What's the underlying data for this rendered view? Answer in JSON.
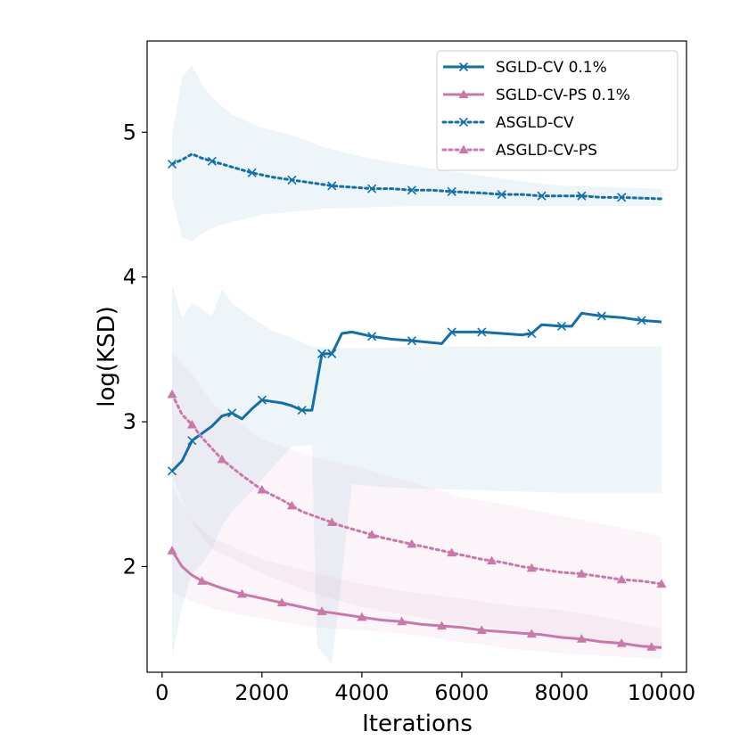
{
  "chart_data": {
    "type": "line",
    "title": "",
    "xlabel": "Iterations",
    "ylabel": "log(KSD)",
    "xlim": [
      -300,
      10500
    ],
    "ylim": [
      1.27,
      5.63
    ],
    "xticks": [
      0,
      2000,
      4000,
      6000,
      8000,
      10000
    ],
    "yticks": [
      2,
      3,
      4,
      5
    ],
    "grid": false,
    "legend_position": "top-right",
    "colors": {
      "sgld_cv": "#1170aa",
      "sgld_cv_ps": "#c978a9"
    },
    "series": [
      {
        "name": "SGLD-CV 0.1%",
        "color": "#1170aa",
        "style": "solid",
        "marker": "x",
        "points": [
          [
            200,
            2.66
          ],
          [
            400,
            2.73
          ],
          [
            600,
            2.87
          ],
          [
            800,
            2.92
          ],
          [
            1000,
            2.97
          ],
          [
            1200,
            3.04
          ],
          [
            1400,
            3.06
          ],
          [
            1600,
            3.02
          ],
          [
            1800,
            3.09
          ],
          [
            2000,
            3.15
          ],
          [
            2200,
            3.14
          ],
          [
            2400,
            3.13
          ],
          [
            2600,
            3.11
          ],
          [
            2800,
            3.08
          ],
          [
            3000,
            3.08
          ],
          [
            3200,
            3.47
          ],
          [
            3400,
            3.47
          ],
          [
            3600,
            3.61
          ],
          [
            3800,
            3.62
          ],
          [
            4200,
            3.59
          ],
          [
            4600,
            3.57
          ],
          [
            5000,
            3.56
          ],
          [
            5600,
            3.54
          ],
          [
            5800,
            3.62
          ],
          [
            6400,
            3.62
          ],
          [
            6800,
            3.61
          ],
          [
            7200,
            3.6
          ],
          [
            7400,
            3.61
          ],
          [
            7600,
            3.67
          ],
          [
            8000,
            3.66
          ],
          [
            8200,
            3.66
          ],
          [
            8400,
            3.75
          ],
          [
            8800,
            3.73
          ],
          [
            9200,
            3.72
          ],
          [
            9600,
            3.7
          ],
          [
            10000,
            3.69
          ]
        ],
        "marker_x": [
          200,
          600,
          1400,
          2000,
          2800,
          3200,
          3400,
          4200,
          5000,
          5800,
          6400,
          7400,
          8000,
          8800,
          9600
        ],
        "band": {
          "x": [
            200,
            400,
            600,
            800,
            1000,
            1200,
            1400,
            1800,
            2200,
            2600,
            3000,
            3100,
            3400,
            3800,
            4400,
            5000,
            6000,
            7000,
            8000,
            9000,
            10000
          ],
          "lower": [
            1.37,
            1.72,
            1.95,
            2.02,
            2.12,
            2.28,
            2.38,
            2.52,
            2.68,
            2.83,
            2.84,
            1.45,
            1.32,
            2.57,
            2.55,
            2.54,
            2.53,
            2.52,
            2.51,
            2.51,
            2.51
          ],
          "upper": [
            3.95,
            3.72,
            3.82,
            3.78,
            3.73,
            3.92,
            3.82,
            3.72,
            3.63,
            3.58,
            3.52,
            3.52,
            3.51,
            3.51,
            3.51,
            3.52,
            3.52,
            3.52,
            3.52,
            3.52,
            3.52
          ]
        }
      },
      {
        "name": "SGLD-CV-PS 0.1%",
        "color": "#c978a9",
        "style": "solid",
        "marker": "triangle",
        "points": [
          [
            200,
            2.11
          ],
          [
            400,
            2.0
          ],
          [
            600,
            1.94
          ],
          [
            800,
            1.9
          ],
          [
            1200,
            1.85
          ],
          [
            1600,
            1.81
          ],
          [
            2000,
            1.78
          ],
          [
            2400,
            1.75
          ],
          [
            2800,
            1.72
          ],
          [
            3200,
            1.69
          ],
          [
            3600,
            1.67
          ],
          [
            4000,
            1.65
          ],
          [
            4400,
            1.63
          ],
          [
            4800,
            1.62
          ],
          [
            5200,
            1.6
          ],
          [
            5600,
            1.59
          ],
          [
            6000,
            1.58
          ],
          [
            6400,
            1.56
          ],
          [
            6800,
            1.55
          ],
          [
            7200,
            1.54
          ],
          [
            7600,
            1.53
          ],
          [
            8000,
            1.51
          ],
          [
            8400,
            1.5
          ],
          [
            8800,
            1.48
          ],
          [
            9200,
            1.47
          ],
          [
            9600,
            1.45
          ],
          [
            10000,
            1.44
          ]
        ],
        "marker_x": [
          200,
          800,
          1600,
          2400,
          3200,
          4000,
          4800,
          5600,
          6400,
          7400,
          8400,
          9200,
          9800
        ],
        "band": {
          "x": [
            200,
            600,
            1000,
            1400,
            2000,
            3000,
            4000,
            5000,
            6000,
            7000,
            8000,
            9000,
            10000
          ],
          "lower": [
            1.82,
            1.76,
            1.71,
            1.68,
            1.64,
            1.58,
            1.56,
            1.53,
            1.48,
            1.43,
            1.4,
            1.38,
            1.36
          ],
          "upper": [
            2.55,
            2.32,
            2.2,
            2.14,
            2.05,
            1.96,
            1.88,
            1.82,
            1.78,
            1.73,
            1.7,
            1.64,
            1.57
          ]
        }
      },
      {
        "name": "ASGLD-CV",
        "color": "#1170aa",
        "style": "dotted",
        "marker": "x",
        "points": [
          [
            200,
            4.78
          ],
          [
            400,
            4.81
          ],
          [
            600,
            4.85
          ],
          [
            800,
            4.82
          ],
          [
            1000,
            4.8
          ],
          [
            1400,
            4.76
          ],
          [
            1800,
            4.72
          ],
          [
            2200,
            4.69
          ],
          [
            2600,
            4.67
          ],
          [
            3000,
            4.65
          ],
          [
            3400,
            4.63
          ],
          [
            3800,
            4.62
          ],
          [
            4200,
            4.61
          ],
          [
            4600,
            4.61
          ],
          [
            5000,
            4.6
          ],
          [
            5400,
            4.6
          ],
          [
            5800,
            4.59
          ],
          [
            6400,
            4.58
          ],
          [
            6800,
            4.57
          ],
          [
            7200,
            4.57
          ],
          [
            7600,
            4.56
          ],
          [
            8000,
            4.56
          ],
          [
            8400,
            4.56
          ],
          [
            8800,
            4.55
          ],
          [
            9200,
            4.55
          ],
          [
            10000,
            4.54
          ]
        ],
        "marker_x": [
          200,
          1000,
          1800,
          2600,
          3400,
          4200,
          5000,
          5800,
          6800,
          7600,
          8400,
          9200
        ],
        "band": {
          "x": [
            200,
            400,
            600,
            800,
            1000,
            1400,
            2000,
            2600,
            3200,
            4000,
            5000,
            6000,
            7000,
            8000,
            9000,
            10000
          ],
          "lower": [
            4.55,
            4.27,
            4.25,
            4.3,
            4.34,
            4.38,
            4.43,
            4.45,
            4.47,
            4.48,
            4.49,
            4.49,
            4.49,
            4.49,
            4.49,
            4.49
          ],
          "upper": [
            4.98,
            5.38,
            5.46,
            5.33,
            5.24,
            5.12,
            5.03,
            4.98,
            4.9,
            4.83,
            4.77,
            4.72,
            4.67,
            4.63,
            4.62,
            4.61
          ]
        }
      },
      {
        "name": "ASGLD-CV-PS",
        "color": "#c978a9",
        "style": "dotted",
        "marker": "triangle",
        "points": [
          [
            200,
            3.19
          ],
          [
            400,
            3.05
          ],
          [
            600,
            2.98
          ],
          [
            800,
            2.89
          ],
          [
            1200,
            2.74
          ],
          [
            1600,
            2.63
          ],
          [
            2000,
            2.53
          ],
          [
            2400,
            2.46
          ],
          [
            2800,
            2.38
          ],
          [
            3200,
            2.33
          ],
          [
            3600,
            2.28
          ],
          [
            4000,
            2.24
          ],
          [
            4400,
            2.2
          ],
          [
            4800,
            2.17
          ],
          [
            5200,
            2.14
          ],
          [
            5600,
            2.11
          ],
          [
            6000,
            2.08
          ],
          [
            6400,
            2.05
          ],
          [
            6800,
            2.03
          ],
          [
            7200,
            2.0
          ],
          [
            7600,
            1.98
          ],
          [
            8000,
            1.96
          ],
          [
            8400,
            1.95
          ],
          [
            8800,
            1.93
          ],
          [
            9200,
            1.91
          ],
          [
            9600,
            1.9
          ],
          [
            10000,
            1.88
          ]
        ],
        "marker_x": [
          200,
          600,
          1200,
          2000,
          2600,
          3400,
          4200,
          5000,
          5800,
          6600,
          7400,
          8400,
          9200,
          10000
        ],
        "band": {
          "x": [
            200,
            600,
            1000,
            1600,
            2000,
            3000,
            4000,
            5000,
            6000,
            7000,
            8000,
            9000,
            10000
          ],
          "lower": [
            2.62,
            2.3,
            2.12,
            2.02,
            1.95,
            1.82,
            1.72,
            1.66,
            1.6,
            1.56,
            1.52,
            1.46,
            1.42
          ],
          "upper": [
            3.48,
            3.33,
            3.13,
            2.98,
            2.88,
            2.76,
            2.68,
            2.58,
            2.48,
            2.42,
            2.35,
            2.28,
            2.21
          ]
        }
      }
    ]
  }
}
